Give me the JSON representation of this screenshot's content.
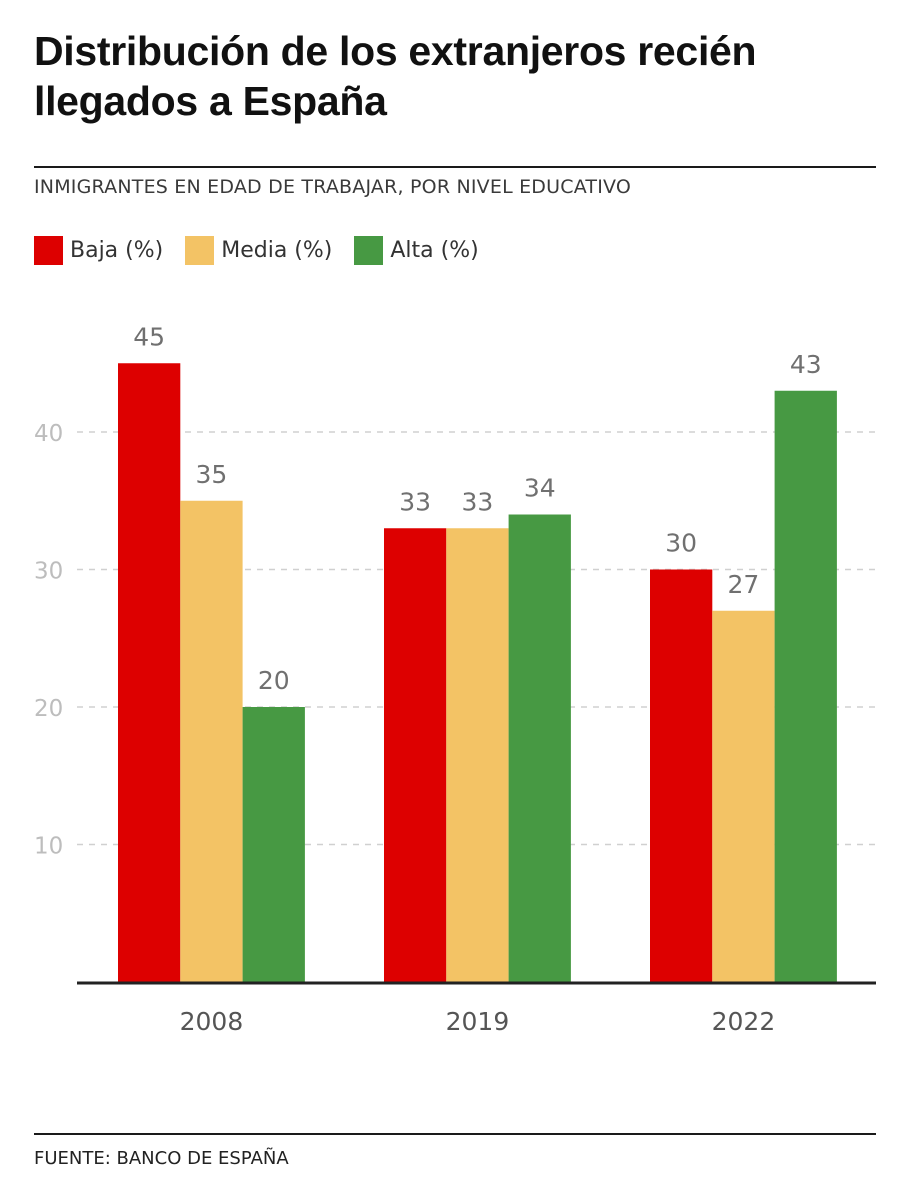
{
  "chart_data": {
    "type": "bar",
    "title": "Distribución de los extranjeros recién llegados a España",
    "subtitle": "INMIGRANTES EN EDAD DE TRABAJAR, POR NIVEL EDUCATIVO",
    "categories": [
      "2008",
      "2019",
      "2022"
    ],
    "series": [
      {
        "name": "Baja (%)",
        "color": "#dd0000",
        "values": [
          45,
          33,
          30
        ]
      },
      {
        "name": "Media (%)",
        "color": "#f3c365",
        "values": [
          35,
          33,
          27
        ]
      },
      {
        "name": "Alta (%)",
        "color": "#479943",
        "values": [
          20,
          34,
          43
        ]
      }
    ],
    "yticks": [
      10,
      20,
      30,
      40
    ],
    "ylim": [
      0,
      48
    ],
    "grid": true,
    "xlabel": "",
    "ylabel": "",
    "source": "FUENTE: BANCO DE ESPAÑA"
  }
}
